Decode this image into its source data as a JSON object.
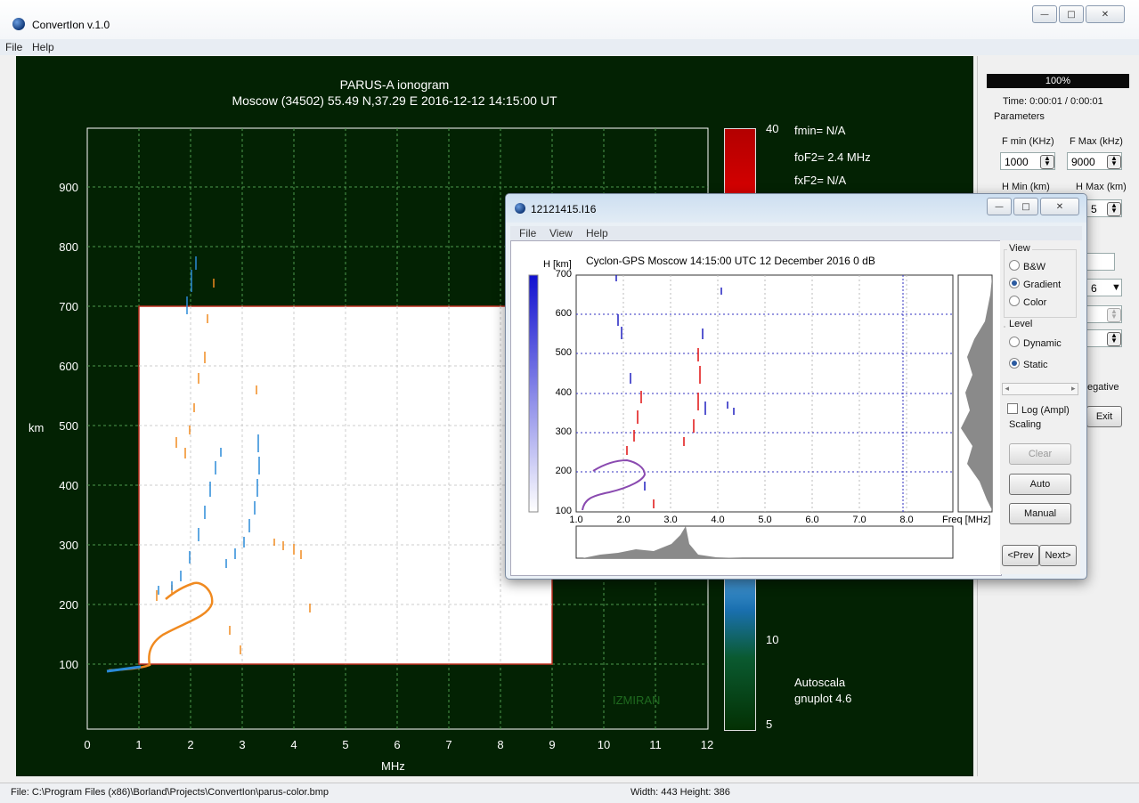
{
  "window": {
    "title": "ConvertIon v.1.0",
    "btn_min": "—",
    "btn_max": "□",
    "btn_close": "✕"
  },
  "menu": [
    "File",
    "Help"
  ],
  "plot": {
    "title": "PARUS-A ionogram",
    "subtitle": "Moscow (34502) 55.49 N,37.29 E   2016-12-12  14:15:00 UT",
    "ylabel": "km",
    "xlabel": "MHz",
    "yticks": [
      "900",
      "800",
      "700",
      "600",
      "500",
      "400",
      "300",
      "200",
      "100"
    ],
    "xticks": [
      "0",
      "1",
      "2",
      "3",
      "4",
      "5",
      "6",
      "7",
      "8",
      "9",
      "10",
      "11",
      "12"
    ],
    "colorbar_ticks": [
      "40",
      "10",
      "5"
    ],
    "params": [
      "fmin= N/A",
      "foF2= 2.4 MHz",
      "fxF2= N/A"
    ],
    "watermark": "IZMIRAN",
    "footer1": "Autoscala",
    "footer2": "gnuplot 4.6",
    "trace_color": "#f08a20",
    "trace_color_x": "#2a8ad8"
  },
  "right_panel": {
    "progress": "100%",
    "time": "Time: 0:00:01 / 0:00:01",
    "params_label": "Parameters",
    "fmin_label": "F min (KHz)",
    "fmax_label": "F Max (kHz)",
    "fmin_value": "1000",
    "fmax_value": "9000",
    "hmin_label": "H Min (km)",
    "hmax_label": "H Max (km)",
    "hmax_partial": "5",
    "combo_partial": "6",
    "negative_partial": "egative",
    "exit_label": "Exit"
  },
  "child": {
    "title": "12121415.I16",
    "menu": [
      "File",
      "View",
      "Help"
    ],
    "header": "Cyclon-GPS   Moscow     14:15:00 UTC          12 December 2016    0 dB",
    "ylabel": "H [km]",
    "yticks": [
      "700",
      "600",
      "500",
      "400",
      "300",
      "200",
      "100"
    ],
    "xticks": [
      "1.0",
      "2.0",
      "3.0",
      "4.0",
      "5.0",
      "6.0",
      "7.0",
      "8.0"
    ],
    "xlabel": "Freq [MHz]",
    "view_label": "View",
    "view_options": [
      "B&W",
      "Gradient",
      "Color"
    ],
    "level_label": "Level",
    "level_options": [
      "Dynamic",
      "Static"
    ],
    "log_label": "Log (Ampl)",
    "scaling_label": "Scaling",
    "btn_clear": "Clear",
    "btn_auto": "Auto",
    "btn_manual": "Manual",
    "btn_prev": "<Prev",
    "btn_next": "Next>"
  },
  "status": {
    "file": "File: C:\\Program Files (x86)\\Borland\\Projects\\ConvertIon\\parus-color.bmp",
    "size": "Width: 443 Height: 386"
  }
}
